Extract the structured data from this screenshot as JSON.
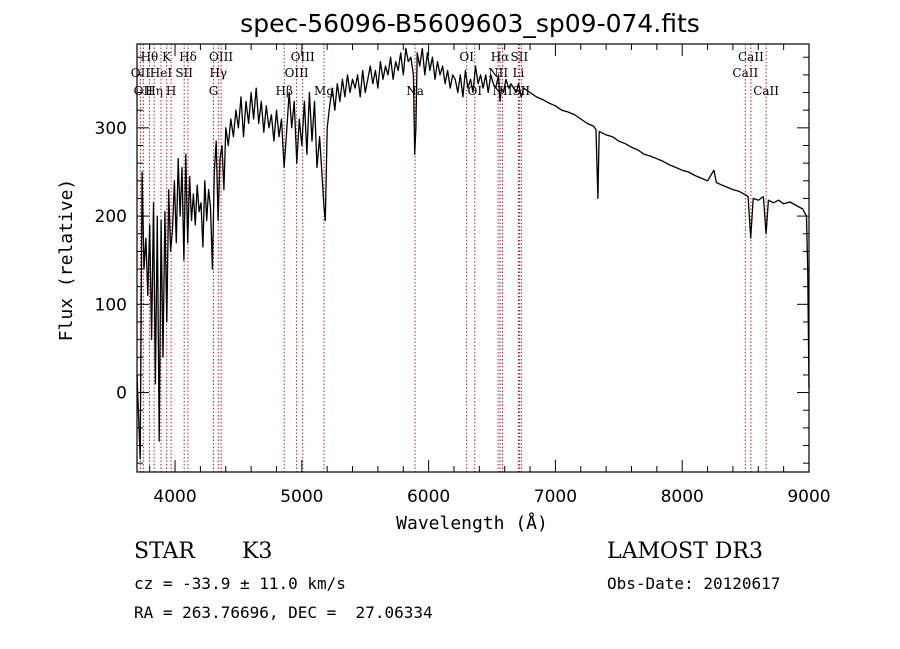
{
  "chart_data": {
    "type": "line",
    "title": "spec-56096-B5609603_sp09-074.fits",
    "xlabel": "Wavelength (Å)",
    "ylabel": "Flux (relative)",
    "xlim": [
      3700,
      9000
    ],
    "ylim": [
      -90,
      395
    ],
    "xticks": [
      4000,
      5000,
      6000,
      7000,
      8000,
      9000
    ],
    "yticks": [
      0,
      100,
      200,
      300
    ],
    "x_minor_step": 200,
    "y_minor_step": 20,
    "grid": false,
    "series": [
      {
        "name": "spectrum",
        "points": [
          [
            3700,
            20
          ],
          [
            3725,
            -75
          ],
          [
            3740,
            250
          ],
          [
            3755,
            140
          ],
          [
            3770,
            175
          ],
          [
            3785,
            110
          ],
          [
            3800,
            190
          ],
          [
            3815,
            60
          ],
          [
            3830,
            215
          ],
          [
            3845,
            10
          ],
          [
            3860,
            200
          ],
          [
            3875,
            -55
          ],
          [
            3890,
            195
          ],
          [
            3905,
            40
          ],
          [
            3920,
            205
          ],
          [
            3935,
            80
          ],
          [
            3950,
            230
          ],
          [
            3965,
            160
          ],
          [
            3980,
            185
          ],
          [
            3995,
            240
          ],
          [
            4010,
            170
          ],
          [
            4025,
            265
          ],
          [
            4040,
            200
          ],
          [
            4055,
            255
          ],
          [
            4070,
            150
          ],
          [
            4085,
            270
          ],
          [
            4100,
            170
          ],
          [
            4115,
            245
          ],
          [
            4130,
            195
          ],
          [
            4145,
            225
          ],
          [
            4160,
            190
          ],
          [
            4175,
            235
          ],
          [
            4190,
            205
          ],
          [
            4205,
            215
          ],
          [
            4220,
            165
          ],
          [
            4235,
            240
          ],
          [
            4250,
            195
          ],
          [
            4265,
            230
          ],
          [
            4280,
            210
          ],
          [
            4295,
            140
          ],
          [
            4310,
            250
          ],
          [
            4325,
            285
          ],
          [
            4340,
            195
          ],
          [
            4355,
            265
          ],
          [
            4370,
            280
          ],
          [
            4385,
            230
          ],
          [
            4400,
            300
          ],
          [
            4420,
            280
          ],
          [
            4440,
            310
          ],
          [
            4460,
            290
          ],
          [
            4480,
            320
          ],
          [
            4500,
            300
          ],
          [
            4520,
            335
          ],
          [
            4540,
            290
          ],
          [
            4560,
            330
          ],
          [
            4580,
            305
          ],
          [
            4600,
            340
          ],
          [
            4620,
            310
          ],
          [
            4640,
            345
          ],
          [
            4660,
            305
          ],
          [
            4680,
            330
          ],
          [
            4700,
            295
          ],
          [
            4720,
            325
          ],
          [
            4740,
            300
          ],
          [
            4760,
            315
          ],
          [
            4780,
            285
          ],
          [
            4800,
            320
          ],
          [
            4820,
            290
          ],
          [
            4840,
            310
          ],
          [
            4860,
            255
          ],
          [
            4880,
            295
          ],
          [
            4900,
            340
          ],
          [
            4920,
            300
          ],
          [
            4940,
            330
          ],
          [
            4960,
            260
          ],
          [
            4980,
            310
          ],
          [
            5000,
            280
          ],
          [
            5020,
            330
          ],
          [
            5040,
            270
          ],
          [
            5060,
            340
          ],
          [
            5080,
            285
          ],
          [
            5100,
            330
          ],
          [
            5120,
            255
          ],
          [
            5140,
            290
          ],
          [
            5160,
            245
          ],
          [
            5175,
            210
          ],
          [
            5185,
            195
          ],
          [
            5200,
            300
          ],
          [
            5220,
            325
          ],
          [
            5240,
            345
          ],
          [
            5260,
            320
          ],
          [
            5280,
            350
          ],
          [
            5300,
            330
          ],
          [
            5320,
            355
          ],
          [
            5340,
            335
          ],
          [
            5360,
            360
          ],
          [
            5380,
            340
          ],
          [
            5400,
            355
          ],
          [
            5420,
            345
          ],
          [
            5440,
            360
          ],
          [
            5460,
            335
          ],
          [
            5480,
            365
          ],
          [
            5500,
            340
          ],
          [
            5520,
            355
          ],
          [
            5540,
            370
          ],
          [
            5560,
            350
          ],
          [
            5580,
            365
          ],
          [
            5600,
            345
          ],
          [
            5620,
            375
          ],
          [
            5640,
            355
          ],
          [
            5660,
            370
          ],
          [
            5680,
            360
          ],
          [
            5700,
            380
          ],
          [
            5720,
            355
          ],
          [
            5740,
            375
          ],
          [
            5760,
            365
          ],
          [
            5780,
            385
          ],
          [
            5800,
            360
          ],
          [
            5820,
            390
          ],
          [
            5840,
            375
          ],
          [
            5860,
            380
          ],
          [
            5880,
            360
          ],
          [
            5890,
            270
          ],
          [
            5900,
            300
          ],
          [
            5910,
            385
          ],
          [
            5930,
            370
          ],
          [
            5950,
            390
          ],
          [
            5970,
            360
          ],
          [
            5990,
            385
          ],
          [
            6010,
            365
          ],
          [
            6030,
            380
          ],
          [
            6050,
            355
          ],
          [
            6070,
            375
          ],
          [
            6090,
            360
          ],
          [
            6110,
            370
          ],
          [
            6130,
            350
          ],
          [
            6150,
            365
          ],
          [
            6170,
            345
          ],
          [
            6190,
            360
          ],
          [
            6210,
            355
          ],
          [
            6230,
            340
          ],
          [
            6250,
            360
          ],
          [
            6270,
            335
          ],
          [
            6290,
            365
          ],
          [
            6310,
            345
          ],
          [
            6330,
            355
          ],
          [
            6350,
            340
          ],
          [
            6370,
            370
          ],
          [
            6390,
            350
          ],
          [
            6410,
            360
          ],
          [
            6430,
            345
          ],
          [
            6450,
            360
          ],
          [
            6470,
            340
          ],
          [
            6490,
            360
          ],
          [
            6510,
            350
          ],
          [
            6530,
            345
          ],
          [
            6550,
            360
          ],
          [
            6563,
            330
          ],
          [
            6575,
            345
          ],
          [
            6590,
            340
          ],
          [
            6610,
            355
          ],
          [
            6630,
            345
          ],
          [
            6650,
            350
          ],
          [
            6670,
            345
          ],
          [
            6690,
            340
          ],
          [
            6710,
            350
          ],
          [
            6730,
            335
          ],
          [
            6750,
            345
          ],
          [
            6800,
            340
          ],
          [
            6850,
            335
          ],
          [
            6900,
            332
          ],
          [
            6950,
            328
          ],
          [
            7000,
            325
          ],
          [
            7050,
            320
          ],
          [
            7100,
            318
          ],
          [
            7150,
            315
          ],
          [
            7200,
            310
          ],
          [
            7250,
            305
          ],
          [
            7300,
            302
          ],
          [
            7320,
            298
          ],
          [
            7335,
            220
          ],
          [
            7345,
            296
          ],
          [
            7400,
            292
          ],
          [
            7450,
            290
          ],
          [
            7500,
            285
          ],
          [
            7550,
            282
          ],
          [
            7600,
            278
          ],
          [
            7650,
            275
          ],
          [
            7700,
            270
          ],
          [
            7750,
            268
          ],
          [
            7800,
            265
          ],
          [
            7850,
            262
          ],
          [
            7900,
            258
          ],
          [
            7950,
            255
          ],
          [
            8000,
            252
          ],
          [
            8050,
            250
          ],
          [
            8100,
            246
          ],
          [
            8150,
            243
          ],
          [
            8200,
            240
          ],
          [
            8250,
            252
          ],
          [
            8270,
            238
          ],
          [
            8300,
            236
          ],
          [
            8350,
            233
          ],
          [
            8400,
            230
          ],
          [
            8450,
            228
          ],
          [
            8500,
            224
          ],
          [
            8520,
            222
          ],
          [
            8540,
            175
          ],
          [
            8560,
            220
          ],
          [
            8600,
            218
          ],
          [
            8640,
            222
          ],
          [
            8662,
            180
          ],
          [
            8680,
            218
          ],
          [
            8720,
            215
          ],
          [
            8760,
            218
          ],
          [
            8800,
            214
          ],
          [
            8850,
            216
          ],
          [
            8900,
            212
          ],
          [
            8950,
            208
          ],
          [
            8980,
            200
          ],
          [
            8990,
            140
          ],
          [
            9000,
            5
          ]
        ]
      }
    ],
    "line_markers": [
      {
        "wl": 3727,
        "label": "OII",
        "row": 2
      },
      {
        "wl": 3750,
        "label": "OII",
        "row": 3
      },
      {
        "wl": 3798,
        "label": "Hθ",
        "row": 1
      },
      {
        "wl": 3835,
        "label": "Hη",
        "row": 3
      },
      {
        "wl": 3889,
        "label": "HeI",
        "row": 2
      },
      {
        "wl": 3934,
        "label": "K",
        "row": 1
      },
      {
        "wl": 3969,
        "label": "H",
        "row": 3
      },
      {
        "wl": 4072,
        "label": "SII",
        "row": 2
      },
      {
        "wl": 4102,
        "label": "Hδ",
        "row": 1
      },
      {
        "wl": 4304,
        "label": "G",
        "row": 3
      },
      {
        "wl": 4341,
        "label": "Hγ",
        "row": 2
      },
      {
        "wl": 4363,
        "label": "OIII",
        "row": 1
      },
      {
        "wl": 4861,
        "label": "Hβ",
        "row": 3
      },
      {
        "wl": 4959,
        "label": "OIII",
        "row": 2
      },
      {
        "wl": 5007,
        "label": "OIII",
        "row": 1
      },
      {
        "wl": 5175,
        "label": "Mg",
        "row": 3
      },
      {
        "wl": 5893,
        "label": "Na",
        "row": 3
      },
      {
        "wl": 6300,
        "label": "OI",
        "row": 1
      },
      {
        "wl": 6364,
        "label": "OI",
        "row": 3
      },
      {
        "wl": 6548,
        "label": "NII",
        "row": 2
      },
      {
        "wl": 6563,
        "label": "Hα",
        "row": 1
      },
      {
        "wl": 6583,
        "label": "NII",
        "row": 3
      },
      {
        "wl": 6708,
        "label": "Li",
        "row": 2
      },
      {
        "wl": 6716,
        "label": "SII",
        "row": 1
      },
      {
        "wl": 6731,
        "label": "SII",
        "row": 3
      },
      {
        "wl": 8498,
        "label": "CaII",
        "row": 2
      },
      {
        "wl": 8542,
        "label": "CaII",
        "row": 1
      },
      {
        "wl": 8662,
        "label": "CaII",
        "row": 3
      }
    ]
  },
  "footer": {
    "class_text": "STAR",
    "subclass": "K3",
    "redshift_text": "cz = -33.9 ± 11.0 km/s",
    "coords_text": "RA = 263.76696, DEC =  27.06334",
    "survey_text": "LAMOST DR3",
    "obs_date_text": "Obs-Date: 20120617"
  },
  "colors": {
    "spectrum": "#000000",
    "marker_lines": "#b22222",
    "axes": "#000000"
  }
}
